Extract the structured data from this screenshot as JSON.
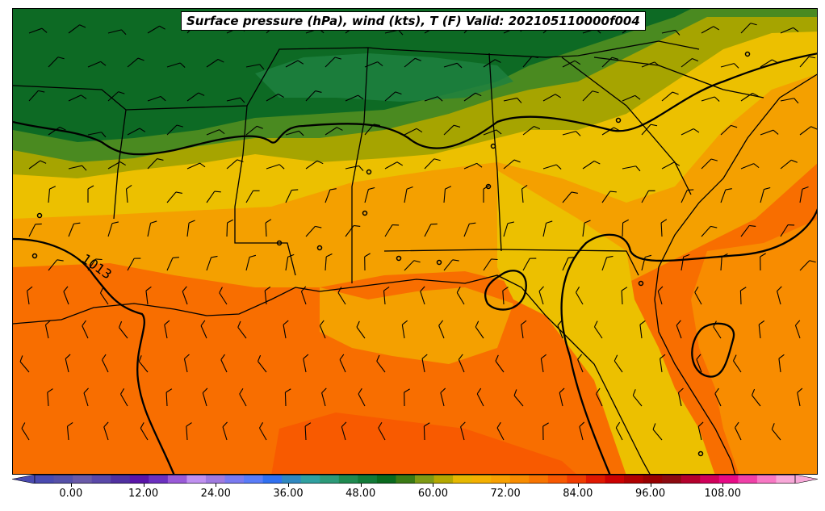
{
  "title": "Surface pressure (hPa), wind (kts), T (F) Valid: 202105110000f004",
  "isobar_label": "1013",
  "colorbar": {
    "ticks": [
      "0.00",
      "12.00",
      "24.00",
      "36.00",
      "48.00",
      "60.00",
      "72.00",
      "84.00",
      "96.00",
      "108.00"
    ],
    "min": -6,
    "max": 120,
    "step": 3,
    "extend": "both",
    "colors": [
      "#4a4ab0",
      "#5650a8",
      "#6a5aa8",
      "#5a48a8",
      "#5030a0",
      "#5a14a8",
      "#6c30c0",
      "#9a5ad8",
      "#c090f0",
      "#a07ae0",
      "#7a7af0",
      "#5a7cf8",
      "#3070f0",
      "#3088c0",
      "#30a0a0",
      "#2c9a78",
      "#1f8a50",
      "#127a38",
      "#0a6a1e",
      "#3a7a14",
      "#7e9a14",
      "#b4a800",
      "#e6b800",
      "#f4b000",
      "#f8a000",
      "#f88c00",
      "#f87400",
      "#f85800",
      "#f03c00",
      "#e01800",
      "#cc0000",
      "#b00000",
      "#980000",
      "#8c0a10",
      "#b4002c",
      "#d0005a",
      "#e80a86",
      "#f040a8",
      "#f878c4",
      "#f8a8d8"
    ]
  },
  "colors": {
    "gulf_water": "#f86e00",
    "land_warm": "#f4a000",
    "land_mild": "#ecc000",
    "land_cool_olive": "#a6a400",
    "land_green": "#4a8a20",
    "land_dark_green": "#0d6a24",
    "isobar": "#000000",
    "borders": "#000000"
  }
}
